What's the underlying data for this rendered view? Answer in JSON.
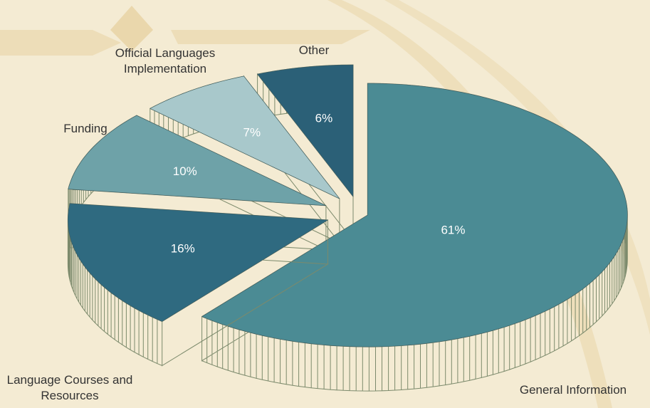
{
  "chart_data": {
    "type": "pie",
    "categories": [
      "General Information",
      "Language Courses and Resources",
      "Funding",
      "Official Languages Implementation",
      "Other"
    ],
    "values": [
      61,
      16,
      10,
      7,
      6
    ],
    "value_labels": [
      "61%",
      "16%",
      "10%",
      "7%",
      "6%"
    ],
    "colors": [
      "#4b8b94",
      "#2f6a80",
      "#6ea2a8",
      "#a8c8cb",
      "#2b6077"
    ],
    "side_color": "#7c8a6c"
  }
}
